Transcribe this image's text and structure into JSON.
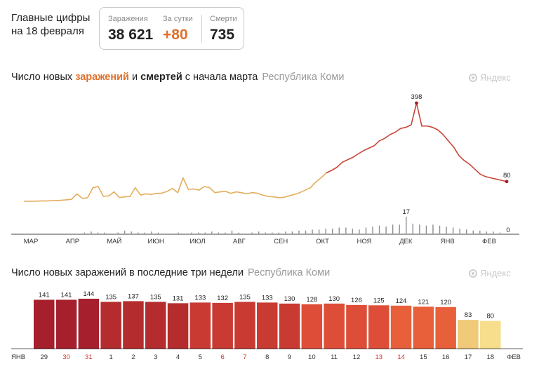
{
  "headline": {
    "line1": "Главные цифры",
    "line2": "на 18 февраля"
  },
  "stats": [
    {
      "label": "Заражения",
      "value": "38 621"
    },
    {
      "label": "За сутки",
      "value": "+80"
    },
    {
      "label": "Смерти",
      "value": "735"
    }
  ],
  "brand": "Яндекс",
  "chart1": {
    "title_part1": "Число новых ",
    "title_cases_word": "заражений",
    "title_part2": " и ",
    "title_deaths_word": "смертей",
    "title_part3": " с начала марта",
    "region": "Республика Коми"
  },
  "chart2": {
    "title": "Число новых заражений в последние три недели",
    "region": "Республика Коми"
  },
  "colors": {
    "early_line": "#e3ad5c",
    "late_line": "#c8473a",
    "peak_marker": "#a51f2c",
    "deaths_bar": "#8e8e94",
    "bar_palette": [
      "#a51f2c",
      "#b52c2e",
      "#c93a33",
      "#dd4d37",
      "#e8603a",
      "#f0c979",
      "#f6de8d"
    ]
  },
  "chart_data": [
    {
      "type": "line",
      "x_labels": [
        "МАР",
        "АПР",
        "МАЙ",
        "ИЮН",
        "ИЮЛ",
        "АВГ",
        "СЕН",
        "ОКТ",
        "НОЯ",
        "ДЕК",
        "ЯНВ",
        "ФЕВ"
      ],
      "series": [
        {
          "values": [
            0,
            0,
            0,
            1,
            1,
            2,
            3,
            4,
            6,
            8,
            30,
            12,
            14,
            55,
            60,
            20,
            22,
            38,
            15,
            18,
            20,
            55,
            25,
            30,
            28,
            32,
            33,
            40,
            52,
            35,
            95,
            48,
            50,
            45,
            60,
            55,
            35,
            38,
            40,
            32,
            38,
            35,
            30,
            35,
            33,
            25,
            20,
            18,
            15,
            16,
            22,
            28,
            35,
            45,
            55,
            78,
            95,
            115,
            125,
            138,
            158,
            168,
            178,
            192,
            205,
            215,
            225,
            245,
            255,
            270,
            280,
            295,
            300,
            310,
            398,
            305,
            305,
            300,
            290,
            270,
            245,
            220,
            185,
            165,
            150,
            130,
            110,
            100,
            95,
            90,
            85,
            80
          ],
          "annotations": [
            {
              "label": "398"
            },
            {
              "label": "80"
            }
          ]
        },
        {
          "values": [
            0,
            0,
            0,
            0,
            0,
            0,
            0,
            0,
            1,
            2,
            1,
            1,
            0,
            1,
            3,
            2,
            1,
            1,
            2,
            1,
            0,
            0,
            1,
            0,
            1,
            1,
            1,
            2,
            1,
            1,
            3,
            1,
            0,
            1,
            2,
            1,
            1,
            1,
            2,
            2,
            3,
            3,
            4,
            4,
            5,
            5,
            6,
            6,
            5,
            4,
            6,
            7,
            8,
            7,
            9,
            9,
            17,
            10,
            9,
            8,
            9,
            8,
            7,
            6,
            5,
            4,
            3,
            3,
            2,
            2,
            1,
            0
          ],
          "annotations": [
            {
              "label": "17"
            },
            {
              "label": "0"
            }
          ]
        }
      ]
    },
    {
      "type": "bar",
      "edge_labels": [
        "ЯНВ",
        "ФЕВ"
      ],
      "categories": [
        "29",
        "30",
        "31",
        "1",
        "2",
        "3",
        "4",
        "5",
        "6",
        "7",
        "8",
        "9",
        "10",
        "11",
        "12",
        "13",
        "14",
        "15",
        "16",
        "17",
        "18"
      ],
      "values": [
        141,
        141,
        144,
        135,
        137,
        135,
        131,
        133,
        132,
        135,
        133,
        130,
        128,
        130,
        126,
        125,
        124,
        121,
        120,
        83,
        80
      ],
      "weekend_categories": [
        "30",
        "31",
        "6",
        "7",
        "13",
        "14"
      ],
      "ylim": [
        0,
        150
      ]
    }
  ]
}
